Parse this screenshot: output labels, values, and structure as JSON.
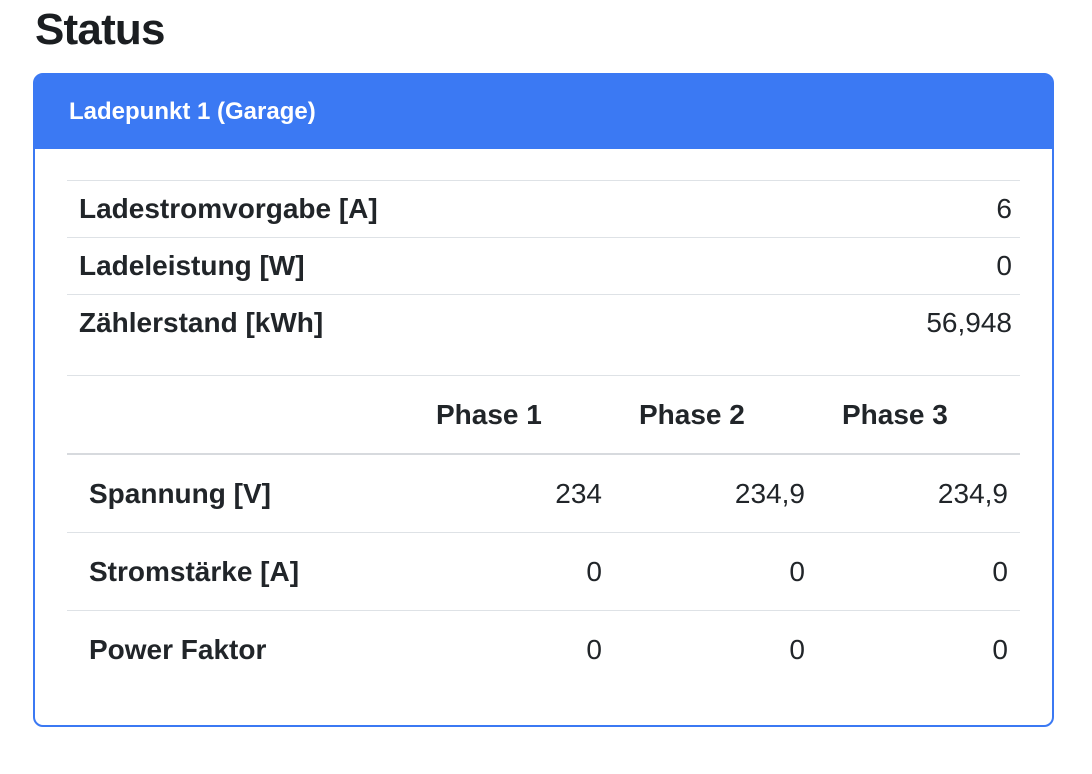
{
  "page": {
    "title": "Status"
  },
  "card": {
    "header": "Ladepunkt 1 (Garage)",
    "summary_rows": [
      {
        "label": "Ladestromvorgabe [A]",
        "value": "6"
      },
      {
        "label": "Ladeleistung [W]",
        "value": "0"
      },
      {
        "label": "Zählerstand [kWh]",
        "value": "56,948"
      }
    ],
    "phase_table": {
      "columns": [
        "Phase 1",
        "Phase 2",
        "Phase 3"
      ],
      "rows": [
        {
          "label": "Spannung [V]",
          "values": [
            "234",
            "234,9",
            "234,9"
          ]
        },
        {
          "label": "Stromstärke [A]",
          "values": [
            "0",
            "0",
            "0"
          ]
        },
        {
          "label": "Power Faktor",
          "values": [
            "0",
            "0",
            "0"
          ]
        }
      ]
    }
  },
  "colors": {
    "primary_blue": "#3b79f3",
    "divider": "#dee2e6",
    "header_divider": "#d7dade",
    "text": "#212529",
    "header_text": "#ffffff"
  }
}
